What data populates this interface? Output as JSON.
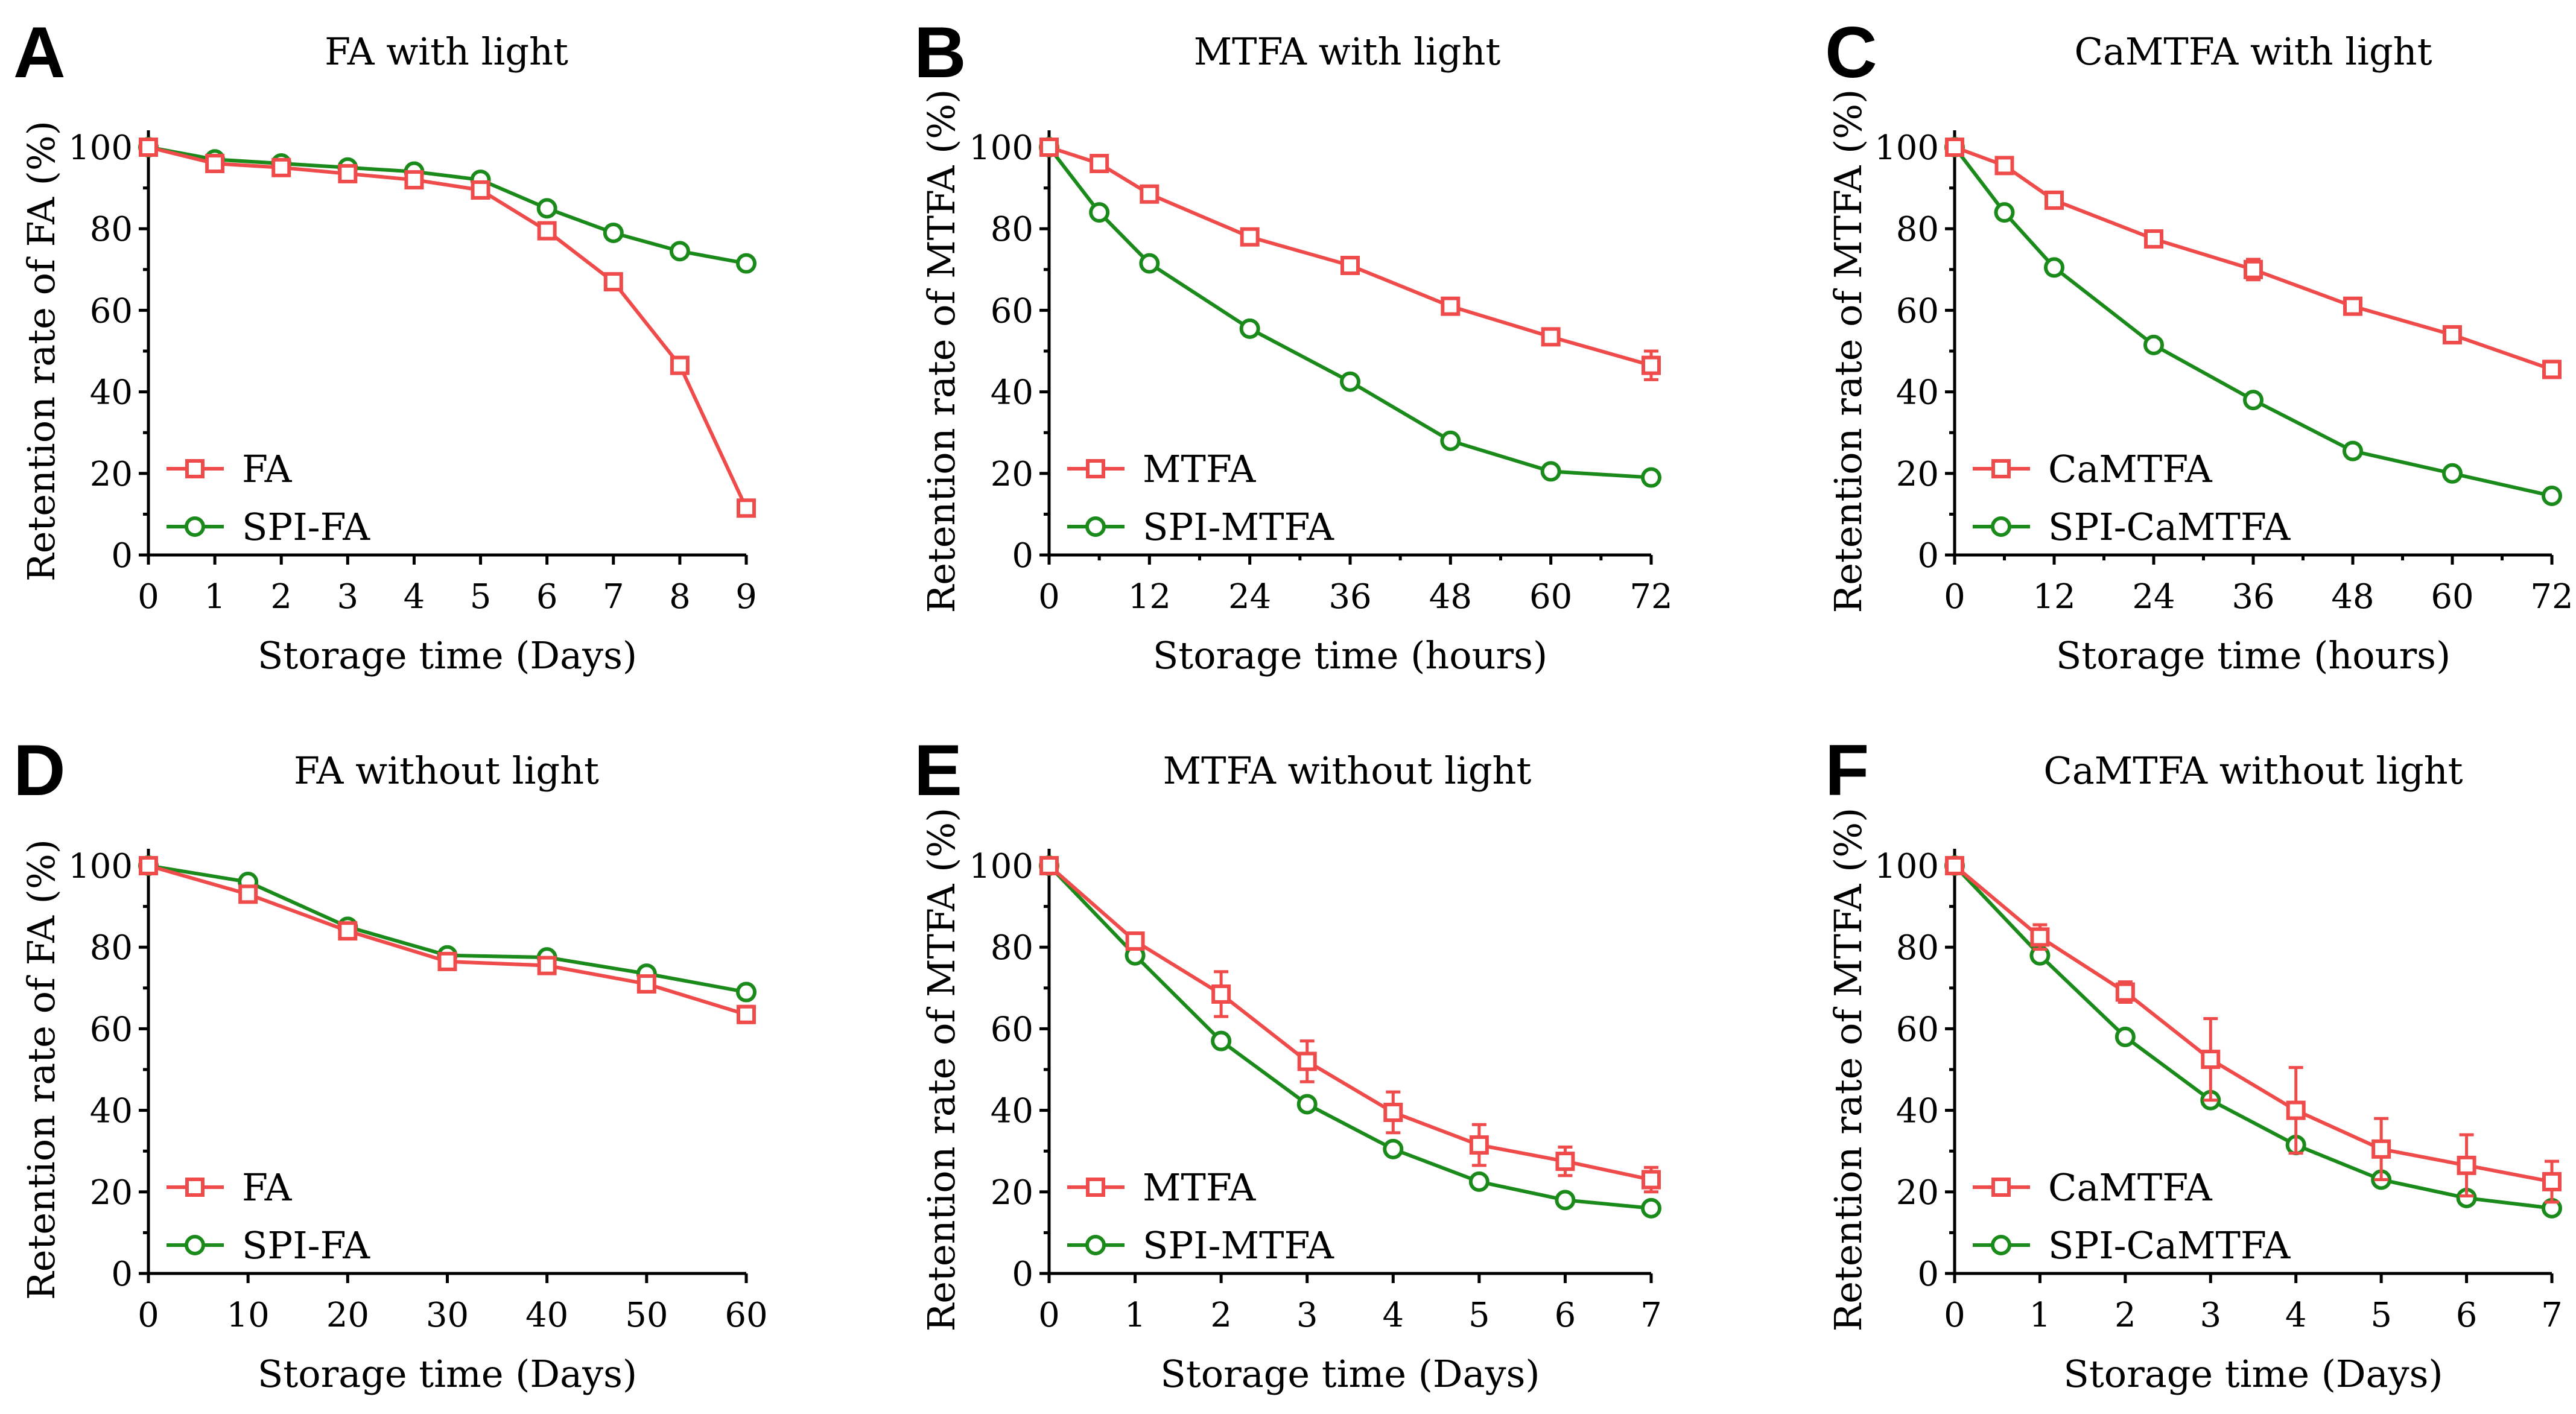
{
  "colors": {
    "series_a": "#ef4b4b",
    "series_b": "#1a8a1a"
  },
  "chart_data": [
    {
      "type": "line",
      "letter": "A",
      "title": "FA with light",
      "xlabel": "Storage time (Days)",
      "ylabel": "Retention rate of FA (%)",
      "xlim": [
        0,
        9
      ],
      "ylim": [
        0,
        100
      ],
      "xticks": [
        0,
        1,
        2,
        3,
        4,
        5,
        6,
        7,
        8,
        9
      ],
      "yticks": [
        0,
        20,
        40,
        60,
        80,
        100
      ],
      "series": [
        {
          "name": "FA",
          "marker": "square",
          "x": [
            0,
            1,
            2,
            3,
            4,
            5,
            6,
            7,
            8,
            9
          ],
          "values": [
            100,
            96,
            95,
            93.5,
            92,
            89.5,
            79.5,
            67,
            46.5,
            11.5
          ],
          "err": [
            0,
            1,
            1,
            1,
            1,
            1,
            1,
            1.5,
            1.5,
            1.5
          ]
        },
        {
          "name": "SPI-FA",
          "marker": "circle",
          "x": [
            0,
            1,
            2,
            3,
            4,
            5,
            6,
            7,
            8,
            9
          ],
          "values": [
            100,
            97,
            96,
            95,
            94,
            92,
            85,
            79,
            74.5,
            71.5
          ],
          "err": [
            0,
            0.5,
            0.5,
            0.5,
            0.5,
            0.5,
            0.5,
            1.5,
            0.5,
            0.5
          ]
        }
      ]
    },
    {
      "type": "line",
      "letter": "B",
      "title": "MTFA with light",
      "xlabel": "Storage time (hours)",
      "ylabel": "Retention rate of MTFA (%)",
      "xlim": [
        0,
        72
      ],
      "ylim": [
        0,
        100
      ],
      "xticks": [
        0,
        12,
        24,
        36,
        48,
        60,
        72
      ],
      "yticks": [
        0,
        20,
        40,
        60,
        80,
        100
      ],
      "series": [
        {
          "name": "MTFA",
          "marker": "square",
          "x": [
            0,
            6,
            12,
            24,
            36,
            48,
            60,
            72
          ],
          "values": [
            100,
            96,
            88.5,
            78,
            71,
            61,
            53.5,
            46.5
          ],
          "err": [
            0,
            1,
            1,
            1,
            1,
            1,
            1,
            3.5
          ]
        },
        {
          "name": "SPI-MTFA",
          "marker": "circle",
          "x": [
            0,
            6,
            12,
            24,
            36,
            48,
            60,
            72
          ],
          "values": [
            100,
            84,
            71.5,
            55.5,
            42.5,
            28,
            20.5,
            19
          ],
          "err": [
            0,
            0.5,
            0.5,
            0.5,
            0.5,
            0.5,
            0.5,
            0.5
          ]
        }
      ]
    },
    {
      "type": "line",
      "letter": "C",
      "title": "CaMTFA with light",
      "xlabel": "Storage time (hours)",
      "ylabel": "Retention rate of MTFA (%)",
      "xlim": [
        0,
        72
      ],
      "ylim": [
        0,
        100
      ],
      "xticks": [
        0,
        12,
        24,
        36,
        48,
        60,
        72
      ],
      "yticks": [
        0,
        20,
        40,
        60,
        80,
        100
      ],
      "series": [
        {
          "name": "CaMTFA",
          "marker": "square",
          "x": [
            0,
            6,
            12,
            24,
            36,
            48,
            60,
            72
          ],
          "values": [
            100,
            95.5,
            87,
            77.5,
            70,
            61,
            54,
            45.5
          ],
          "err": [
            0,
            1,
            1,
            1,
            2.5,
            1,
            1,
            2
          ]
        },
        {
          "name": "SPI-CaMTFA",
          "marker": "circle",
          "x": [
            0,
            6,
            12,
            24,
            36,
            48,
            60,
            72
          ],
          "values": [
            100,
            84,
            70.5,
            51.5,
            38,
            25.5,
            20,
            14.5
          ],
          "err": [
            0,
            0.5,
            0.5,
            0.5,
            0.5,
            0.5,
            0.5,
            0.5
          ]
        }
      ]
    },
    {
      "type": "line",
      "letter": "D",
      "title": "FA without light",
      "xlabel": "Storage time (Days)",
      "ylabel": "Retention rate of FA (%)",
      "xlim": [
        0,
        60
      ],
      "ylim": [
        0,
        100
      ],
      "xticks": [
        0,
        10,
        20,
        30,
        40,
        50,
        60
      ],
      "yticks": [
        0,
        20,
        40,
        60,
        80,
        100
      ],
      "series": [
        {
          "name": "FA",
          "marker": "square",
          "x": [
            0,
            10,
            20,
            30,
            40,
            50,
            60
          ],
          "values": [
            100,
            93,
            84,
            76.5,
            75.5,
            71,
            63.5
          ],
          "err": [
            0,
            1,
            1,
            1.5,
            1,
            1,
            2
          ]
        },
        {
          "name": "SPI-FA",
          "marker": "circle",
          "x": [
            0,
            10,
            20,
            30,
            40,
            50,
            60
          ],
          "values": [
            100,
            96,
            85,
            78,
            77.5,
            73.5,
            69
          ],
          "err": [
            0,
            0.5,
            0.5,
            0.5,
            0.5,
            0.5,
            0.5
          ]
        }
      ]
    },
    {
      "type": "line",
      "letter": "E",
      "title": "MTFA without light",
      "xlabel": "Storage time (Days)",
      "ylabel": "Retention rate of MTFA (%)",
      "xlim": [
        0,
        7
      ],
      "ylim": [
        0,
        100
      ],
      "xticks": [
        0,
        1,
        2,
        3,
        4,
        5,
        6,
        7
      ],
      "yticks": [
        0,
        20,
        40,
        60,
        80,
        100
      ],
      "series": [
        {
          "name": "MTFA",
          "marker": "square",
          "x": [
            0,
            1,
            2,
            3,
            4,
            5,
            6,
            7
          ],
          "values": [
            100,
            81.5,
            68.5,
            52,
            39.5,
            31.5,
            27.5,
            23
          ],
          "err": [
            0,
            1.5,
            5.5,
            5,
            5,
            5,
            3.5,
            3
          ]
        },
        {
          "name": "SPI-MTFA",
          "marker": "circle",
          "x": [
            0,
            1,
            2,
            3,
            4,
            5,
            6,
            7
          ],
          "values": [
            100,
            78,
            57,
            41.5,
            30.5,
            22.5,
            18,
            16
          ],
          "err": [
            0,
            0.5,
            0.5,
            0.5,
            0.5,
            0.5,
            0.5,
            0.5
          ]
        }
      ]
    },
    {
      "type": "line",
      "letter": "F",
      "title": "CaMTFA without light",
      "xlabel": "Storage time (Days)",
      "ylabel": "Retention rate of MTFA (%)",
      "xlim": [
        0,
        7
      ],
      "ylim": [
        0,
        100
      ],
      "xticks": [
        0,
        1,
        2,
        3,
        4,
        5,
        6,
        7
      ],
      "yticks": [
        0,
        20,
        40,
        60,
        80,
        100
      ],
      "series": [
        {
          "name": "CaMTFA",
          "marker": "square",
          "x": [
            0,
            1,
            2,
            3,
            4,
            5,
            6,
            7
          ],
          "values": [
            100,
            82.5,
            69,
            52.5,
            40,
            30.5,
            26.5,
            22.5
          ],
          "err": [
            0,
            3,
            2.5,
            10,
            10.5,
            7.5,
            7.5,
            5
          ]
        },
        {
          "name": "SPI-CaMTFA",
          "marker": "circle",
          "x": [
            0,
            1,
            2,
            3,
            4,
            5,
            6,
            7
          ],
          "values": [
            100,
            78,
            58,
            42.5,
            31.5,
            23,
            18.5,
            16
          ],
          "err": [
            0,
            0.5,
            0.5,
            0.5,
            0.5,
            0.5,
            0.5,
            0.5
          ]
        }
      ]
    }
  ]
}
